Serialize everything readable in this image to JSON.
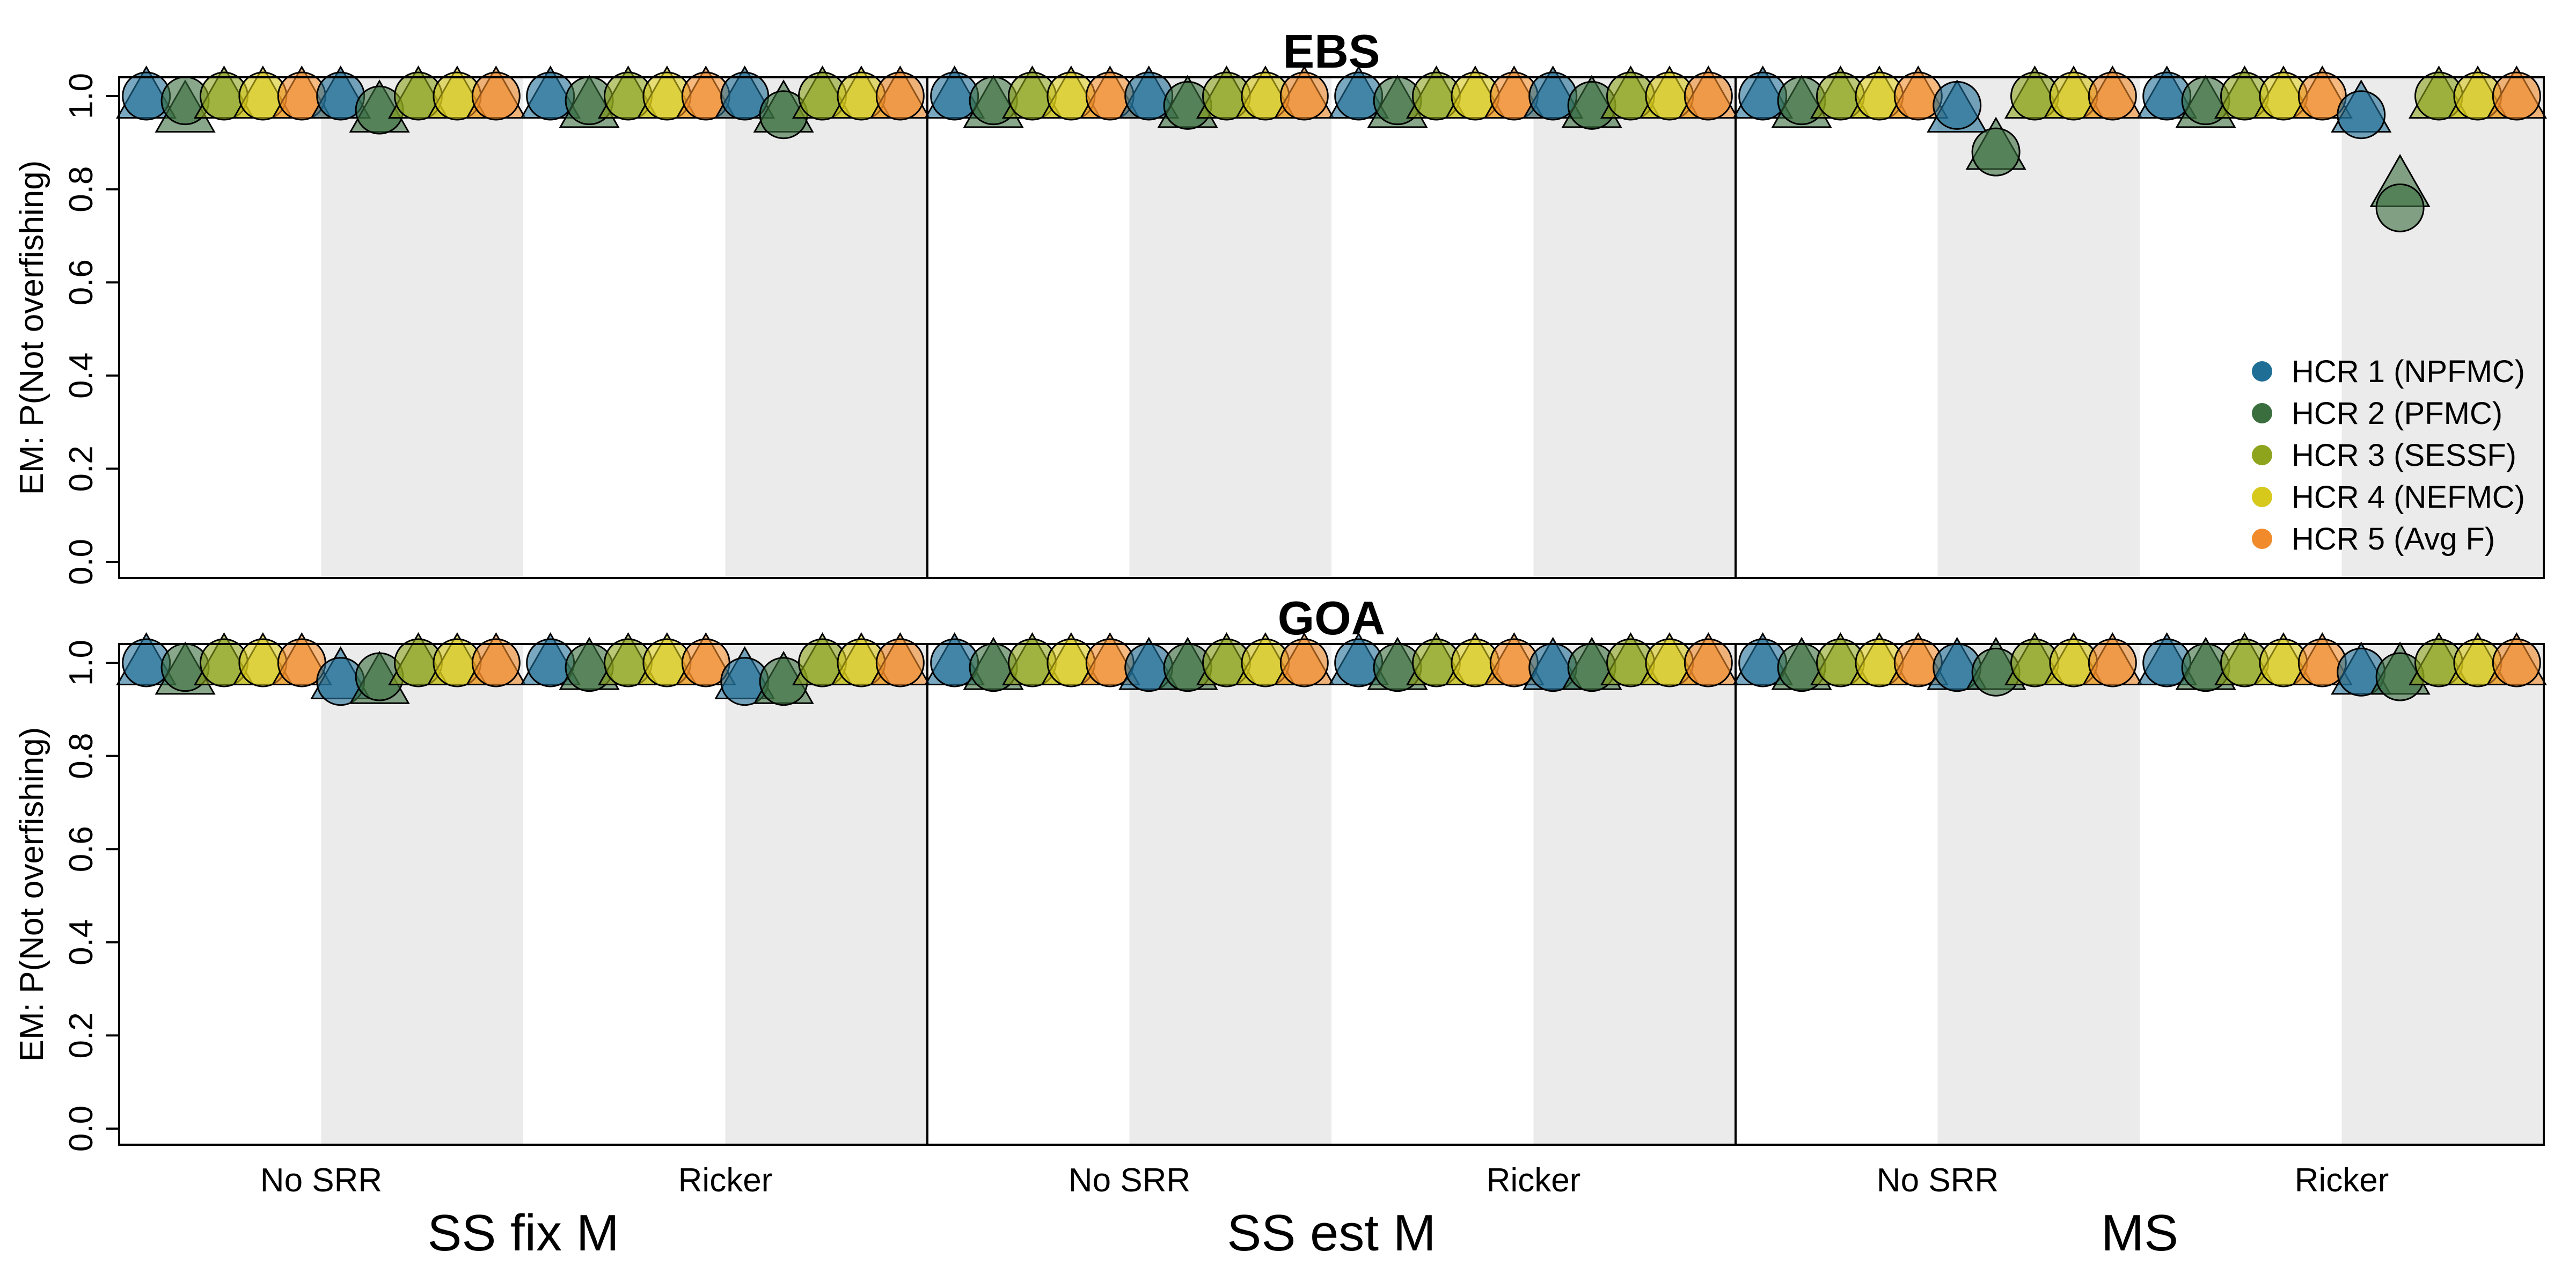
{
  "chart_data": {
    "type": "scatter",
    "ylabel": "EM: P(Not overfishing)",
    "ylim": [
      0,
      1
    ],
    "yticks": [
      "0.0",
      "0.2",
      "0.4",
      "0.6",
      "0.8",
      "1.0"
    ],
    "groups": [
      "SS fix M",
      "SS est M",
      "MS"
    ],
    "categories": [
      "No SRR",
      "Ricker"
    ],
    "legend": {
      "position": "bottom-right of top panel",
      "entries": [
        {
          "name": "HCR 1 (NPFMC)",
          "color": "#1f6e96"
        },
        {
          "name": "HCR 2 (PFMC)",
          "color": "#3a6e3e"
        },
        {
          "name": "HCR 3 (SESSF)",
          "color": "#8da41c"
        },
        {
          "name": "HCR 4 (NEFMC)",
          "color": "#d7c81c"
        },
        {
          "name": "HCR 5 (Avg F)",
          "color": "#f08a2a"
        }
      ]
    },
    "marker_note": "circle = one estimation variant, triangle = other; shaded band = second half of each category",
    "panels": [
      {
        "title": "EBS",
        "values": [
          [
            {
              "circles": [
                1.0,
                0.99,
                1.0,
                1.0,
                1.0,
                1.0,
                0.97,
                1.0,
                1.0,
                1.0
              ],
              "triangles": [
                1.0,
                0.97,
                1.0,
                1.0,
                1.0,
                1.0,
                0.97,
                1.0,
                1.0,
                1.0
              ]
            },
            {
              "circles": [
                1.0,
                0.99,
                1.0,
                1.0,
                1.0,
                1.0,
                0.96,
                1.0,
                1.0,
                1.0
              ],
              "triangles": [
                1.0,
                0.98,
                1.0,
                1.0,
                1.0,
                1.0,
                0.97,
                1.0,
                1.0,
                1.0
              ]
            }
          ],
          [
            {
              "circles": [
                1.0,
                0.99,
                1.0,
                1.0,
                1.0,
                1.0,
                0.98,
                1.0,
                1.0,
                1.0
              ],
              "triangles": [
                1.0,
                0.98,
                1.0,
                1.0,
                1.0,
                1.0,
                0.98,
                1.0,
                1.0,
                1.0
              ]
            },
            {
              "circles": [
                1.0,
                0.99,
                1.0,
                1.0,
                1.0,
                1.0,
                0.98,
                1.0,
                1.0,
                1.0
              ],
              "triangles": [
                1.0,
                0.98,
                1.0,
                1.0,
                1.0,
                1.0,
                0.98,
                1.0,
                1.0,
                1.0
              ]
            }
          ],
          [
            {
              "circles": [
                1.0,
                0.99,
                1.0,
                1.0,
                1.0,
                0.98,
                0.88,
                1.0,
                1.0,
                1.0
              ],
              "triangles": [
                1.0,
                0.98,
                1.0,
                1.0,
                1.0,
                0.97,
                0.89,
                1.0,
                1.0,
                1.0
              ]
            },
            {
              "circles": [
                1.0,
                0.99,
                1.0,
                1.0,
                1.0,
                0.96,
                0.76,
                1.0,
                1.0,
                1.0
              ],
              "triangles": [
                1.0,
                0.98,
                1.0,
                1.0,
                1.0,
                0.97,
                0.81,
                1.0,
                1.0,
                1.0
              ]
            }
          ]
        ]
      },
      {
        "title": "GOA",
        "values": [
          [
            {
              "circles": [
                1.0,
                0.99,
                1.0,
                1.0,
                1.0,
                0.96,
                0.97,
                1.0,
                1.0,
                1.0
              ],
              "triangles": [
                1.0,
                0.98,
                1.0,
                1.0,
                1.0,
                0.97,
                0.96,
                1.0,
                1.0,
                1.0
              ]
            },
            {
              "circles": [
                1.0,
                0.99,
                1.0,
                1.0,
                1.0,
                0.96,
                0.96,
                1.0,
                1.0,
                1.0
              ],
              "triangles": [
                1.0,
                0.99,
                1.0,
                1.0,
                1.0,
                0.97,
                0.96,
                1.0,
                1.0,
                1.0
              ]
            }
          ],
          [
            {
              "circles": [
                1.0,
                0.99,
                1.0,
                1.0,
                1.0,
                0.99,
                0.99,
                1.0,
                1.0,
                1.0
              ],
              "triangles": [
                1.0,
                0.99,
                1.0,
                1.0,
                1.0,
                0.99,
                0.99,
                1.0,
                1.0,
                1.0
              ]
            },
            {
              "circles": [
                1.0,
                0.99,
                1.0,
                1.0,
                1.0,
                0.99,
                0.99,
                1.0,
                1.0,
                1.0
              ],
              "triangles": [
                1.0,
                0.99,
                1.0,
                1.0,
                1.0,
                0.99,
                0.99,
                1.0,
                1.0,
                1.0
              ]
            }
          ],
          [
            {
              "circles": [
                1.0,
                0.99,
                1.0,
                1.0,
                1.0,
                0.99,
                0.98,
                1.0,
                1.0,
                1.0
              ],
              "triangles": [
                1.0,
                0.99,
                1.0,
                1.0,
                1.0,
                0.99,
                0.99,
                1.0,
                1.0,
                1.0
              ]
            },
            {
              "circles": [
                1.0,
                0.99,
                1.0,
                1.0,
                1.0,
                0.98,
                0.97,
                1.0,
                1.0,
                1.0
              ],
              "triangles": [
                1.0,
                0.99,
                1.0,
                1.0,
                1.0,
                0.98,
                0.98,
                1.0,
                1.0,
                1.0
              ]
            }
          ]
        ]
      }
    ]
  }
}
